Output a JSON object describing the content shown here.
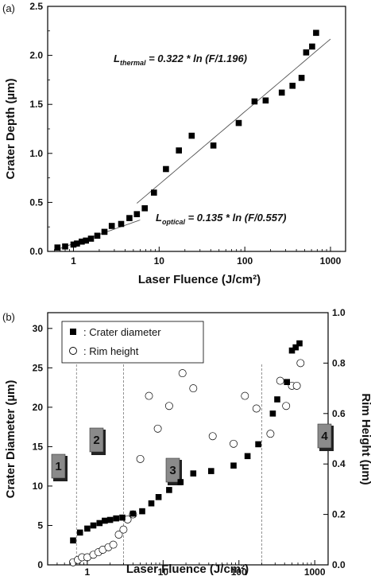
{
  "chart_data": [
    {
      "panel_label": "(a)",
      "type": "scatter",
      "xscale": "log",
      "xlim": [
        0.5,
        1500
      ],
      "ylim": [
        0,
        2.5
      ],
      "xlabel": "Laser Fluence (J/cm²)",
      "ylabel": "Crater Depth (µm)",
      "xticks": [
        1,
        10,
        100,
        1000
      ],
      "xtick_labels": [
        "1",
        "10",
        "100",
        "1000"
      ],
      "yticks": [
        0.0,
        0.5,
        1.0,
        1.5,
        2.0,
        2.5
      ],
      "ytick_labels": [
        "0.0",
        "0.5",
        "1.0",
        "1.5",
        "2.0",
        "2.5"
      ],
      "series": [
        {
          "marker": "filled-square",
          "color": "#000000",
          "x": [
            0.65,
            0.8,
            1.0,
            1.1,
            1.25,
            1.4,
            1.6,
            1.9,
            2.3,
            2.8,
            3.6,
            4.5,
            5.5,
            6.8,
            8.7,
            12,
            17,
            24,
            43,
            85,
            130,
            175,
            270,
            360,
            460,
            520,
            610,
            680
          ],
          "y": [
            0.04,
            0.05,
            0.07,
            0.08,
            0.1,
            0.11,
            0.13,
            0.16,
            0.2,
            0.26,
            0.28,
            0.34,
            0.38,
            0.44,
            0.6,
            0.84,
            1.03,
            1.18,
            1.08,
            1.31,
            1.53,
            1.54,
            1.62,
            1.69,
            1.77,
            2.03,
            2.09,
            2.23
          ]
        }
      ],
      "fit_lines": [
        {
          "name": "thermal",
          "a": 0.322,
          "F0": 1.196,
          "x_range": [
            5.5,
            1000
          ]
        },
        {
          "name": "optical",
          "a": 0.135,
          "F0": 0.557,
          "x_range": [
            0.6,
            6
          ]
        }
      ],
      "annotations": {
        "thermal": {
          "main": "L",
          "sub": "thermal",
          "rest": " = 0.322 * ln (F/1.196)"
        },
        "optical": {
          "main": "L",
          "sub": "optical",
          "rest": " = 0.135 * ln (F/0.557)"
        }
      }
    },
    {
      "panel_label": "(b)",
      "type": "scatter",
      "xscale": "log",
      "xlim": [
        0.3,
        1500
      ],
      "ylim_left": [
        0,
        32
      ],
      "ylim_right": [
        0,
        1.0
      ],
      "xlabel": "Laser Fluence (J/cm²)",
      "ylabel_left": "Crater Diameter (µm)",
      "ylabel_right": "Rim Height (µm)",
      "xticks": [
        1,
        10,
        100,
        1000
      ],
      "xtick_labels": [
        "1",
        "10",
        "100",
        "1000"
      ],
      "yticks_left": [
        0,
        5,
        10,
        15,
        20,
        25,
        30
      ],
      "ytick_labels_left": [
        "0",
        "5",
        "10",
        "15",
        "20",
        "25",
        "30"
      ],
      "yticks_right": [
        0.0,
        0.2,
        0.4,
        0.6,
        0.8,
        1.0
      ],
      "ytick_labels_right": [
        "0.0",
        "0.2",
        "0.4",
        "0.6",
        "0.8",
        "1.0"
      ],
      "legend": {
        "placement": "top-left",
        "entries": [
          {
            "marker": "filled-square",
            "label": ": Crater diameter"
          },
          {
            "marker": "open-circle",
            "label": ": Rim height"
          }
        ]
      },
      "series": [
        {
          "name": ": Crater diameter",
          "axis": "left",
          "marker": "filled-square",
          "color": "#000000",
          "x": [
            0.65,
            0.8,
            1.0,
            1.2,
            1.45,
            1.7,
            2.0,
            2.4,
            2.9,
            4.0,
            5.3,
            7.0,
            8.7,
            12,
            17,
            25,
            43,
            85,
            130,
            180,
            280,
            320,
            430,
            500,
            560,
            630
          ],
          "y": [
            3.1,
            4.1,
            4.6,
            5.0,
            5.3,
            5.6,
            5.7,
            5.9,
            6.0,
            6.5,
            6.8,
            7.8,
            8.6,
            9.5,
            10.5,
            11.6,
            11.9,
            12.6,
            13.8,
            15.3,
            19.2,
            21.0,
            23.2,
            27.2,
            27.6,
            28.1
          ]
        },
        {
          "name": ": Rim height",
          "axis": "right",
          "marker": "open-circle",
          "color": "#000000",
          "x": [
            0.65,
            0.75,
            0.85,
            1.0,
            1.2,
            1.4,
            1.6,
            1.9,
            2.2,
            2.6,
            3.0,
            3.4,
            4.0,
            5.0,
            6.5,
            8.5,
            12,
            18,
            25,
            45,
            85,
            120,
            170,
            260,
            350,
            420,
            500,
            580,
            650
          ],
          "y": [
            0.01,
            0.02,
            0.03,
            0.03,
            0.04,
            0.05,
            0.06,
            0.07,
            0.08,
            0.12,
            0.14,
            0.18,
            0.2,
            0.42,
            0.67,
            0.54,
            0.63,
            0.76,
            0.7,
            0.51,
            0.48,
            0.67,
            0.62,
            0.52,
            0.73,
            0.63,
            0.71,
            0.71,
            0.8
          ]
        }
      ],
      "region_dividers_x": [
        0.72,
        3.0,
        200
      ],
      "region_labels": [
        "1",
        "2",
        "3",
        "4"
      ]
    }
  ]
}
